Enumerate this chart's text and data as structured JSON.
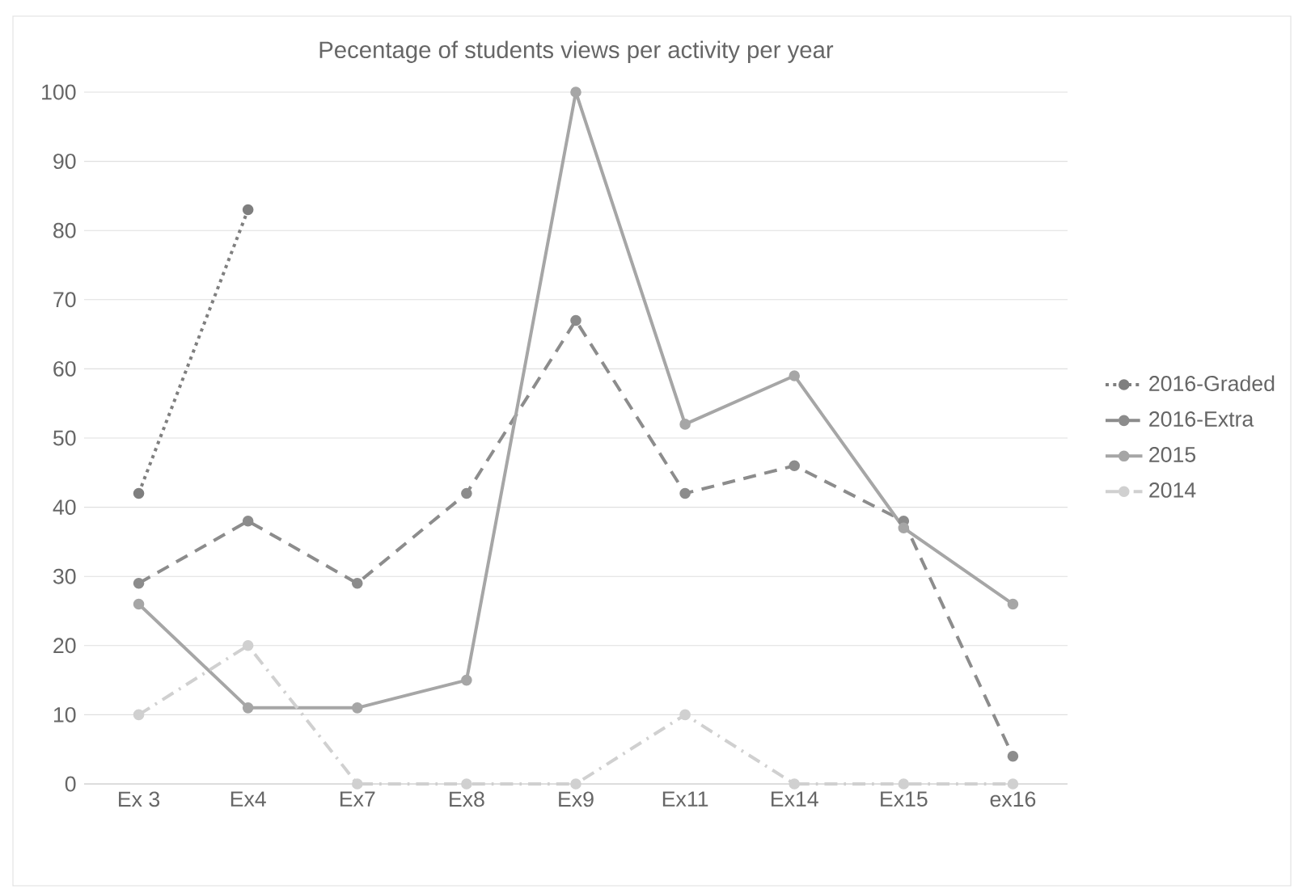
{
  "chart_data": {
    "type": "line",
    "title": "Pecentage of students views per activity per year",
    "categories": [
      "Ex 3",
      "Ex4",
      "Ex7",
      "Ex8",
      "Ex9",
      "Ex11",
      "Ex14",
      "Ex15",
      "ex16"
    ],
    "series": [
      {
        "name": "2016-Graded",
        "color": "#7f7f7f",
        "line_style": "dotted",
        "values": [
          42,
          83,
          null,
          null,
          null,
          null,
          null,
          null,
          null
        ]
      },
      {
        "name": "2016-Extra",
        "color": "#8c8c8c",
        "line_style": "dashed",
        "values": [
          29,
          38,
          29,
          42,
          67,
          42,
          46,
          38,
          4
        ]
      },
      {
        "name": "2015",
        "color": "#a6a6a6",
        "line_style": "solid",
        "values": [
          26,
          11,
          11,
          15,
          100,
          52,
          59,
          37,
          26
        ]
      },
      {
        "name": "2014",
        "color": "#d0d0d0",
        "line_style": "dashdot",
        "values": [
          10,
          20,
          0,
          0,
          0,
          10,
          0,
          0,
          0
        ]
      }
    ],
    "ylim": [
      0,
      100
    ],
    "yticks": [
      0,
      10,
      20,
      30,
      40,
      50,
      60,
      70,
      80,
      90,
      100
    ],
    "grid": "y",
    "legend": "right",
    "marker": "circle"
  }
}
